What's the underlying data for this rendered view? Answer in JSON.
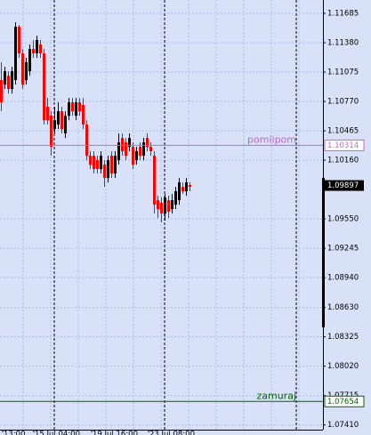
{
  "chart_data": {
    "type": "candlestick",
    "open": [
      1.10992,
      1.10946,
      1.11038,
      1.109,
      1.10992,
      1.11546,
      1.11269,
      1.10992,
      1.11084,
      1.11315,
      1.11269,
      1.11362,
      1.11269,
      1.10715,
      1.10622,
      1.10484,
      1.1053,
      1.10669,
      1.10438,
      1.10622,
      1.10761,
      1.10622,
      1.10761,
      1.10733,
      1.1053,
      1.10207,
      1.10207,
      1.1016,
      1.10068,
      1.10114,
      1.09976,
      1.10207,
      1.10022,
      1.1016,
      1.10391,
      1.10345,
      1.10299,
      1.10299,
      1.1016,
      1.10299,
      1.10207,
      1.10391,
      1.10299,
      1.10207,
      1.09745,
      1.09717,
      1.09606,
      1.09745,
      1.09652,
      1.09698,
      1.09745,
      1.09883,
      1.09837,
      1.09902
    ],
    "high": [
      1.11177,
      1.11131,
      1.11084,
      1.11131,
      1.11593,
      1.11565,
      1.11315,
      1.11223,
      1.11362,
      1.11408,
      1.11454,
      1.11408,
      1.11315,
      1.10807,
      1.10669,
      1.10715,
      1.10761,
      1.10715,
      1.10669,
      1.10807,
      1.10807,
      1.10807,
      1.10807,
      1.10807,
      1.10576,
      1.10253,
      1.10253,
      1.10207,
      1.10253,
      1.1016,
      1.10207,
      1.10253,
      1.10253,
      1.10438,
      1.10438,
      1.10391,
      1.10438,
      1.10345,
      1.10299,
      1.10345,
      1.10391,
      1.10438,
      1.10345,
      1.10253,
      1.09791,
      1.09772,
      1.09809,
      1.09791,
      1.09809,
      1.09883,
      1.09976,
      1.09929,
      1.09976,
      1.09929
    ],
    "low": [
      1.10669,
      1.109,
      1.10853,
      1.10853,
      1.10946,
      1.11223,
      1.109,
      1.10946,
      1.11038,
      1.11223,
      1.11223,
      1.11223,
      1.1053,
      1.1053,
      1.10207,
      1.10438,
      1.10484,
      1.10438,
      1.10391,
      1.10576,
      1.10622,
      1.10576,
      1.10622,
      1.10484,
      1.1016,
      1.10068,
      1.10022,
      1.10022,
      1.10022,
      1.09883,
      1.09929,
      1.09976,
      1.09976,
      1.10114,
      1.10207,
      1.1016,
      1.10253,
      1.10068,
      1.10114,
      1.1016,
      1.1016,
      1.10253,
      1.10207,
      1.09606,
      1.0956,
      1.09514,
      1.09532,
      1.0956,
      1.09606,
      1.09652,
      1.09698,
      1.09809,
      1.09791,
      1.09837
    ],
    "close": [
      1.10761,
      1.11084,
      1.109,
      1.11084,
      1.11546,
      1.11269,
      1.10946,
      1.11177,
      1.11315,
      1.11269,
      1.11408,
      1.11269,
      1.10576,
      1.10576,
      1.10299,
      1.10576,
      1.10669,
      1.10484,
      1.10622,
      1.10761,
      1.10669,
      1.10761,
      1.10669,
      1.1053,
      1.10207,
      1.10114,
      1.10068,
      1.10068,
      1.10207,
      1.09976,
      1.1016,
      1.10022,
      1.10207,
      1.10345,
      1.10253,
      1.10207,
      1.10391,
      1.10114,
      1.10253,
      1.10207,
      1.10345,
      1.10299,
      1.10253,
      1.09698,
      1.09652,
      1.09606,
      1.09772,
      1.09624,
      1.09745,
      1.09837,
      1.09929,
      1.09837,
      1.09929,
      1.09883
    ],
    "up_color": "#000000",
    "down_color": "#ff0000",
    "ylim": [
      1.07361,
      1.11824
    ],
    "yticks": [
      1.11685,
      {
        "value": 1.1138,
        "label": "1.11380"
      },
      1.11075,
      {
        "value": 1.1077,
        "label": "1.10770"
      },
      1.10465,
      {
        "value": 1.1016,
        "label": "1.10160"
      },
      {
        "value": 1.0955,
        "label": "1.09550"
      },
      1.09245,
      {
        "value": 1.0894,
        "label": "1.08940"
      },
      {
        "value": 1.0863,
        "label": "1.08630"
      },
      1.08325,
      {
        "value": 1.0802,
        "label": "1.08020"
      },
      1.07715,
      {
        "value": 1.0741,
        "label": "1.07410"
      }
    ],
    "x_labels": [
      "13:00",
      "15 Jul 04:00",
      "19 Jul 16:00",
      "23 Jul 08:00"
    ],
    "hlines": [
      {
        "name": "pomiipom",
        "value": 1.10314,
        "color": "#c864c8"
      },
      {
        "name": "zamuraj",
        "value": 1.07654,
        "color": "#006400"
      }
    ],
    "bid": 1.09897,
    "grid": true
  }
}
